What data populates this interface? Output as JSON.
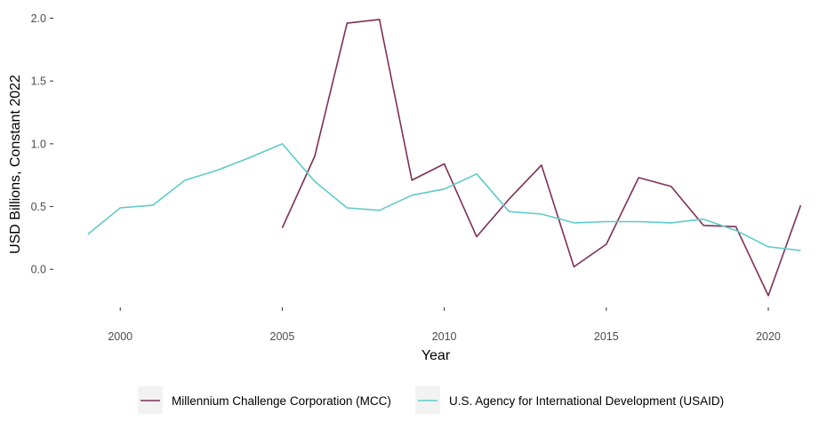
{
  "chart_data": {
    "type": "line",
    "xlabel": "Year",
    "ylabel": "USD Billions, Constant 2022",
    "xlim": [
      1998.1,
      2021.4
    ],
    "ylim": [
      -0.26,
      2.06
    ],
    "x_ticks": [
      2000,
      2005,
      2010,
      2015,
      2020
    ],
    "x_tick_labels": [
      "2000",
      "2005",
      "2010",
      "2015",
      "2020"
    ],
    "y_ticks": [
      0.0,
      0.5,
      1.0,
      1.5,
      2.0
    ],
    "y_tick_labels": [
      "0.0",
      "0.5",
      "1.0",
      "1.5",
      "2.0"
    ],
    "grid": false,
    "legend_position": "bottom",
    "series": [
      {
        "name": "Millennium Challenge Corporation (MCC)",
        "color": "#7f2f55",
        "x": [
          2005,
          2006,
          2007,
          2008,
          2009,
          2010,
          2011,
          2012,
          2013,
          2014,
          2015,
          2016,
          2017,
          2018,
          2019,
          2020,
          2021
        ],
        "y": [
          0.33,
          0.9,
          1.96,
          1.99,
          0.71,
          0.84,
          0.26,
          0.56,
          0.83,
          0.02,
          0.2,
          0.73,
          0.66,
          0.35,
          0.34,
          -0.21,
          0.51
        ]
      },
      {
        "name": "U.S. Agency for International Development (USAID)",
        "color": "#5ecbca",
        "x": [
          1999,
          2000,
          2001,
          2002,
          2003,
          2004,
          2005,
          2006,
          2007,
          2008,
          2009,
          2010,
          2011,
          2012,
          2013,
          2014,
          2015,
          2016,
          2017,
          2018,
          2019,
          2020,
          2021
        ],
        "y": [
          0.28,
          0.49,
          0.51,
          0.71,
          0.79,
          0.89,
          1.0,
          0.7,
          0.49,
          0.47,
          0.59,
          0.64,
          0.76,
          0.46,
          0.44,
          0.37,
          0.38,
          0.38,
          0.37,
          0.4,
          0.31,
          0.18,
          0.15
        ]
      }
    ]
  }
}
